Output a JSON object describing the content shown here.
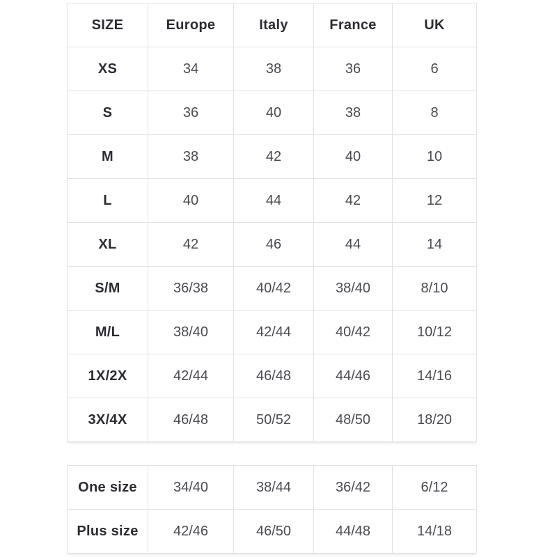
{
  "colors": {
    "background": "#ffffff",
    "border": "#e2e2e6",
    "header_text": "#2b2b33",
    "cell_text": "#4a4a52"
  },
  "main_table": {
    "columns": [
      "SIZE",
      "Europe",
      "Italy",
      "France",
      "UK"
    ],
    "rows": [
      {
        "label": "XS",
        "values": [
          "34",
          "38",
          "36",
          "6"
        ]
      },
      {
        "label": "S",
        "values": [
          "36",
          "40",
          "38",
          "8"
        ]
      },
      {
        "label": "M",
        "values": [
          "38",
          "42",
          "40",
          "10"
        ]
      },
      {
        "label": "L",
        "values": [
          "40",
          "44",
          "42",
          "12"
        ]
      },
      {
        "label": "XL",
        "values": [
          "42",
          "46",
          "44",
          "14"
        ]
      },
      {
        "label": "S/M",
        "values": [
          "36/38",
          "40/42",
          "38/40",
          "8/10"
        ]
      },
      {
        "label": "M/L",
        "values": [
          "38/40",
          "42/44",
          "40/42",
          "10/12"
        ]
      },
      {
        "label": "1X/2X",
        "values": [
          "42/44",
          "46/48",
          "44/46",
          "14/16"
        ]
      },
      {
        "label": "3X/4X",
        "values": [
          "46/48",
          "50/52",
          "48/50",
          "18/20"
        ]
      }
    ]
  },
  "secondary_table": {
    "rows": [
      {
        "label": "One size",
        "values": [
          "34/40",
          "38/44",
          "36/42",
          "6/12"
        ]
      },
      {
        "label": "Plus size",
        "values": [
          "42/46",
          "46/50",
          "44/48",
          "14/18"
        ]
      }
    ]
  }
}
